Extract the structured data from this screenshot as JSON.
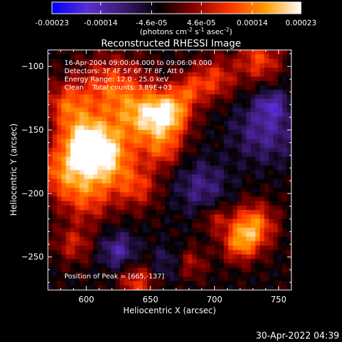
{
  "chart_data": {
    "type": "heatmap",
    "title": "Reconstructed RHESSI Image",
    "xlabel": "Heliocentric X (arcsec)",
    "ylabel": "Heliocentric Y (arcsec)",
    "xlim": [
      570,
      760
    ],
    "ylim": [
      -276,
      -87
    ],
    "x_ticks": [
      600,
      650,
      700,
      750
    ],
    "y_ticks": [
      -100,
      -150,
      -200,
      -250
    ],
    "annotations": [
      "16-Apr-2004 09:00:04.000 to 09:06:04.000",
      "Detectors: 3F 4F 5F 6F 7F 8F, Att 0",
      "Energy Range: 12.0 - 25.0 keV",
      "Clean    Total counts: 3.89E+03"
    ],
    "peak_label": "Position of Peak = [665,-137]",
    "peak": [
      665,
      -137
    ],
    "colorbar": {
      "range": [
        -0.00023,
        0.00023
      ],
      "tick_labels": [
        "-0.00023",
        "-0.00014",
        "-4.6e-05",
        "4.6e-05",
        "0.00014",
        "0.00023"
      ],
      "tick_values": [
        -0.00023,
        -0.00014,
        -4.6e-05,
        4.6e-05,
        0.00014,
        0.00023
      ],
      "units_label": "(photons cm",
      "units_exp1": "-2",
      "units_mid": " s",
      "units_exp2": "-1",
      "units_tail": " asec",
      "units_exp3": "-2",
      "units_close": ")",
      "colors": [
        "#0000ff",
        "#5a2fd0",
        "#3a1a70",
        "#000000",
        "#8a0000",
        "#ff3300",
        "#ff9a00",
        "#ffffff"
      ]
    },
    "sources": [
      {
        "x": 612,
        "y": -172,
        "amp": 1.0,
        "r": 17
      },
      {
        "x": 598,
        "y": -158,
        "amp": 0.75,
        "r": 14
      },
      {
        "x": 645,
        "y": -140,
        "amp": 0.7,
        "r": 15
      },
      {
        "x": 665,
        "y": -137,
        "amp": 0.85,
        "r": 12
      },
      {
        "x": 620,
        "y": -118,
        "amp": 0.6,
        "r": 18
      },
      {
        "x": 585,
        "y": -130,
        "amp": 0.55,
        "r": 12
      },
      {
        "x": 580,
        "y": -185,
        "amp": 0.55,
        "r": 14
      },
      {
        "x": 600,
        "y": -205,
        "amp": 0.45,
        "r": 14
      },
      {
        "x": 640,
        "y": -195,
        "amp": 0.45,
        "r": 12
      },
      {
        "x": 660,
        "y": -165,
        "amp": 0.5,
        "r": 11
      },
      {
        "x": 700,
        "y": -110,
        "amp": 0.5,
        "r": 12
      },
      {
        "x": 735,
        "y": -95,
        "amp": 0.55,
        "r": 12
      },
      {
        "x": 680,
        "y": -118,
        "amp": 0.4,
        "r": 9
      },
      {
        "x": 730,
        "y": -225,
        "amp": 0.75,
        "r": 12
      },
      {
        "x": 720,
        "y": -240,
        "amp": 0.6,
        "r": 10
      },
      {
        "x": 700,
        "y": -220,
        "amp": 0.35,
        "r": 8
      },
      {
        "x": 590,
        "y": -240,
        "amp": 0.4,
        "r": 10
      },
      {
        "x": 640,
        "y": -270,
        "amp": 0.5,
        "r": 10
      },
      {
        "x": 680,
        "y": -255,
        "amp": 0.4,
        "r": 9
      },
      {
        "x": 690,
        "y": -195,
        "amp": -0.35,
        "r": 15
      },
      {
        "x": 740,
        "y": -150,
        "amp": -0.4,
        "r": 18
      },
      {
        "x": 625,
        "y": -245,
        "amp": -0.45,
        "r": 10
      },
      {
        "x": 665,
        "y": -255,
        "amp": -0.3,
        "r": 10
      },
      {
        "x": 745,
        "y": -130,
        "amp": -0.35,
        "r": 8
      }
    ]
  },
  "timestamp": "30-Apr-2022 04:39"
}
